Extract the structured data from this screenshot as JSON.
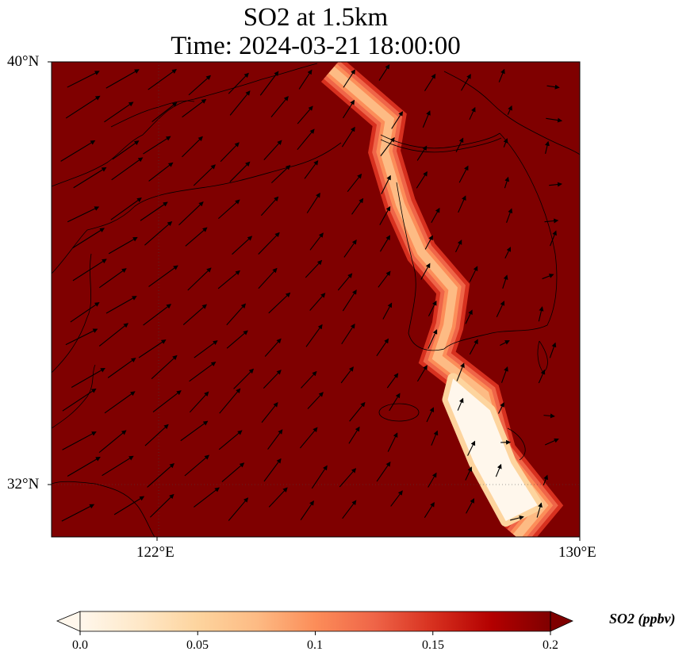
{
  "chart_data": {
    "type": "heatmap",
    "title_line1": "SO2 at 1.5km",
    "title_line2": "Time: 2024-03-21 18:00:00",
    "lon_range": [
      120,
      130
    ],
    "lat_range": [
      31,
      40
    ],
    "x_ticks": [
      {
        "value": 122,
        "label": "122°E"
      },
      {
        "value": 130,
        "label": "130°E"
      }
    ],
    "y_ticks": [
      {
        "value": 40,
        "label": "40°N"
      },
      {
        "value": 32,
        "label": "32°N"
      }
    ],
    "colorbar": {
      "label": "SO2 (ppbv)",
      "range": [
        0,
        0.2
      ],
      "extend": "both",
      "ticks": [
        {
          "value": 0,
          "label": "0.0"
        },
        {
          "value": 0.05,
          "label": "0.05"
        },
        {
          "value": 0.1,
          "label": "0.1"
        },
        {
          "value": 0.15,
          "label": "0.15"
        },
        {
          "value": 0.2,
          "label": "0.2"
        }
      ],
      "colors": [
        "#fff7ec",
        "#fee8c8",
        "#fdd49e",
        "#fdbb84",
        "#fc8d59",
        "#ef6548",
        "#d7301f",
        "#b30000",
        "#7f0000"
      ]
    },
    "background_value": 0.2,
    "plume_path_lonlat": [
      [
        125.3,
        39.85
      ],
      [
        126.4,
        38.9
      ],
      [
        126.3,
        38.3
      ],
      [
        126.6,
        37.3
      ],
      [
        127.0,
        36.4
      ],
      [
        127.6,
        35.7
      ],
      [
        127.5,
        35.0
      ],
      [
        127.3,
        34.4
      ],
      [
        128.2,
        33.7
      ],
      [
        128.5,
        32.6
      ],
      [
        129.3,
        31.6
      ],
      [
        128.8,
        31.0
      ]
    ],
    "white_core_lonlat": [
      [
        127.6,
        34.0
      ],
      [
        128.3,
        33.4
      ],
      [
        128.7,
        32.4
      ],
      [
        129.2,
        31.6
      ],
      [
        128.6,
        31.3
      ],
      [
        128.0,
        32.4
      ],
      [
        127.5,
        33.6
      ]
    ],
    "wind_vectors": "quiver field, predominantly southwesterly (toward NE)"
  }
}
